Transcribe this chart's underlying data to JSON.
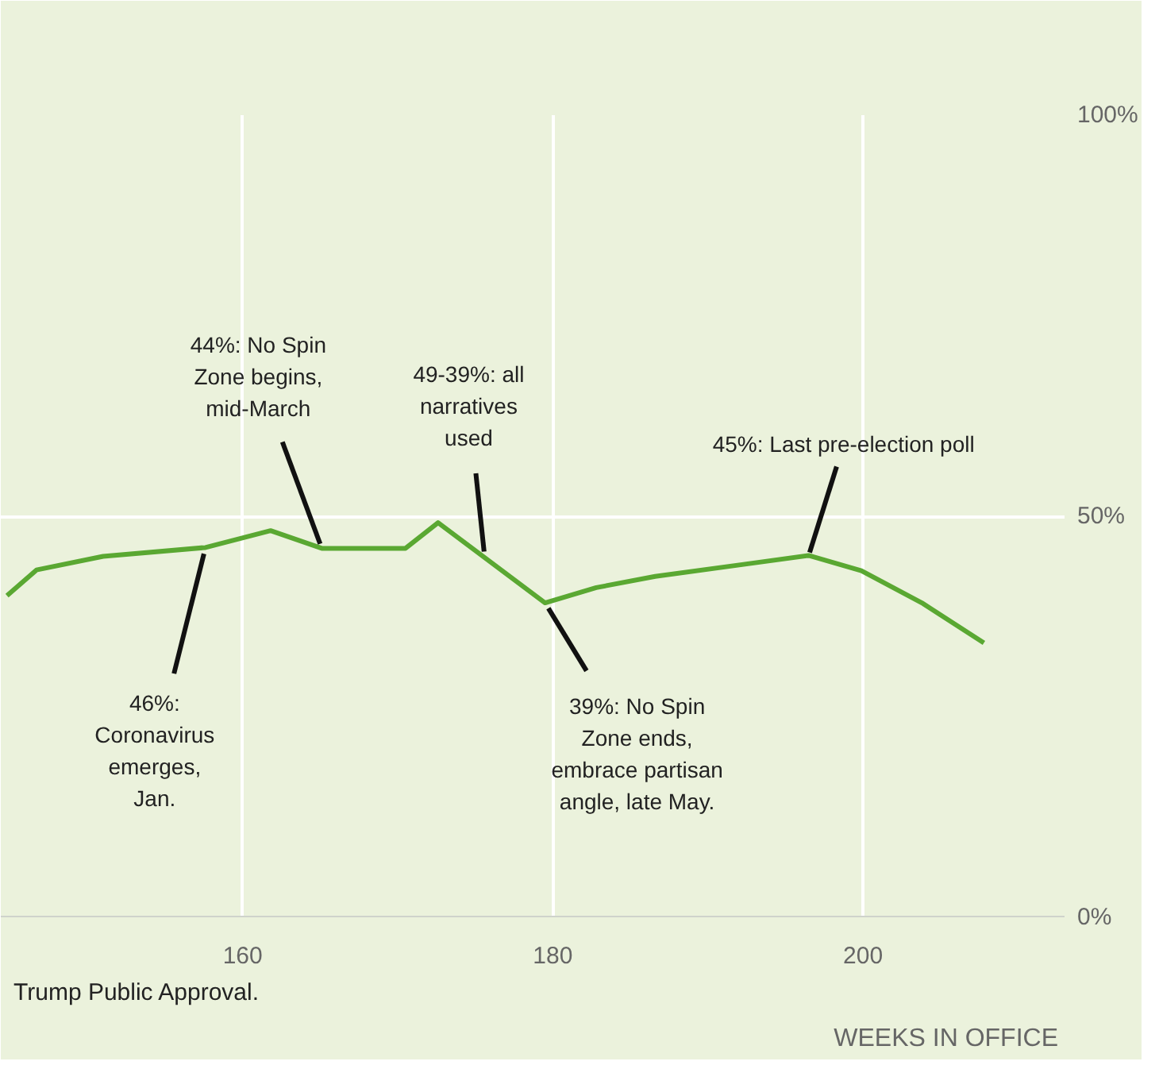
{
  "chart_data": {
    "type": "line",
    "xlabel": "WEEKS IN OFFICE",
    "x": [
      144.8,
      146.7,
      151.0,
      157.6,
      161.8,
      165.1,
      170.5,
      172.6,
      179.5,
      182.8,
      186.6,
      192.3,
      196.5,
      199.9,
      203.8,
      207.8
    ],
    "series": [
      {
        "color": "#5aa832",
        "values": [
          40.1,
          43.3,
          45.0,
          46.1,
          48.2,
          46.0,
          46.0,
          49.2,
          39.2,
          41.1,
          42.5,
          44.0,
          45.1,
          43.2,
          39.2,
          34.2
        ]
      }
    ],
    "xlim": [
      144.4,
      213
    ],
    "xticks": [
      160,
      180,
      200
    ],
    "ylim": [
      0,
      100
    ],
    "yticks": [
      {
        "value": 0,
        "label": "0%"
      },
      {
        "value": 50,
        "label": "50%"
      },
      {
        "value": 100,
        "label": "100%"
      }
    ],
    "grid": true,
    "marker": "none",
    "line_style": "solid",
    "annotations": [
      {
        "text": "46%:\nCoronavirus\nemerges,\nJan.",
        "x": 157.6,
        "y": 46.1
      },
      {
        "text": "44%: No Spin\nZone begins,\nmid-March",
        "x": 165.1,
        "y": 46.0
      },
      {
        "text": "49-39%: all\nnarratives\nused",
        "x": 175.6,
        "y": 45.0
      },
      {
        "text": "39%: No Spin\nZone ends,\nembrace partisan\nangle, late May.",
        "x": 179.5,
        "y": 39.2
      },
      {
        "text": "45%: Last pre-election poll",
        "x": 196.5,
        "y": 45.1
      },
      "Trump Public Approval."
    ]
  }
}
